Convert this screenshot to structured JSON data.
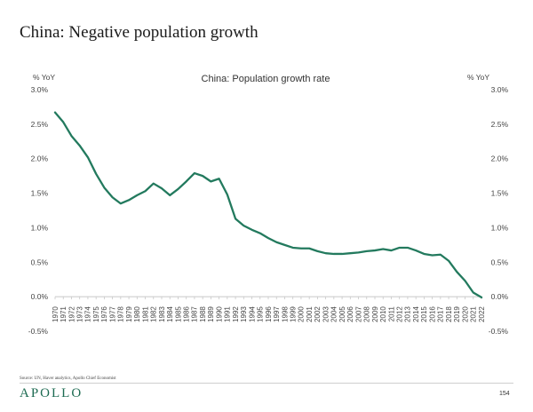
{
  "slide": {
    "title": "China: Negative population growth",
    "source": "Source: UN, Haver analytics, Apollo Chief Economist",
    "brand": "APOLLO",
    "page_number": "154"
  },
  "colors": {
    "line": "#237a5e",
    "brand": "#1d6b52",
    "text": "#444444",
    "axis": "#c8c8c8"
  },
  "chart_data": {
    "type": "line",
    "title": "China: Population growth rate",
    "ylabel_left": "% YoY",
    "ylabel_right": "% YoY",
    "xlabel": "",
    "ylim": [
      -0.5,
      3.0
    ],
    "y_ticks": [
      3.0,
      2.5,
      2.0,
      1.5,
      1.0,
      0.5,
      0.0,
      -0.5
    ],
    "y_tick_labels": [
      "3.0%",
      "2.5%",
      "2.0%",
      "1.5%",
      "1.0%",
      "0.5%",
      "0.0%",
      "-0.5%"
    ],
    "grid": false,
    "legend": "none",
    "categories": [
      "1970",
      "1971",
      "1972",
      "1973",
      "1974",
      "1975",
      "1976",
      "1977",
      "1978",
      "1979",
      "1980",
      "1981",
      "1982",
      "1983",
      "1984",
      "1985",
      "1986",
      "1987",
      "1988",
      "1989",
      "1990",
      "1991",
      "1992",
      "1993",
      "1994",
      "1995",
      "1996",
      "1997",
      "1998",
      "1999",
      "2000",
      "2001",
      "2002",
      "2003",
      "2004",
      "2005",
      "2006",
      "2007",
      "2008",
      "2009",
      "2010",
      "2011",
      "2012",
      "2013",
      "2014",
      "2015",
      "2016",
      "2017",
      "2018",
      "2019",
      "2020",
      "2021",
      "2022"
    ],
    "series": [
      {
        "name": "China: Population growth rate",
        "values": [
          2.67,
          2.53,
          2.33,
          2.19,
          2.02,
          1.78,
          1.58,
          1.44,
          1.35,
          1.4,
          1.47,
          1.53,
          1.64,
          1.57,
          1.47,
          1.56,
          1.67,
          1.79,
          1.75,
          1.67,
          1.71,
          1.48,
          1.13,
          1.03,
          0.97,
          0.92,
          0.85,
          0.79,
          0.75,
          0.71,
          0.7,
          0.7,
          0.66,
          0.63,
          0.62,
          0.62,
          0.63,
          0.64,
          0.66,
          0.67,
          0.69,
          0.67,
          0.71,
          0.71,
          0.67,
          0.62,
          0.6,
          0.61,
          0.52,
          0.36,
          0.23,
          0.06,
          -0.01
        ]
      }
    ]
  }
}
